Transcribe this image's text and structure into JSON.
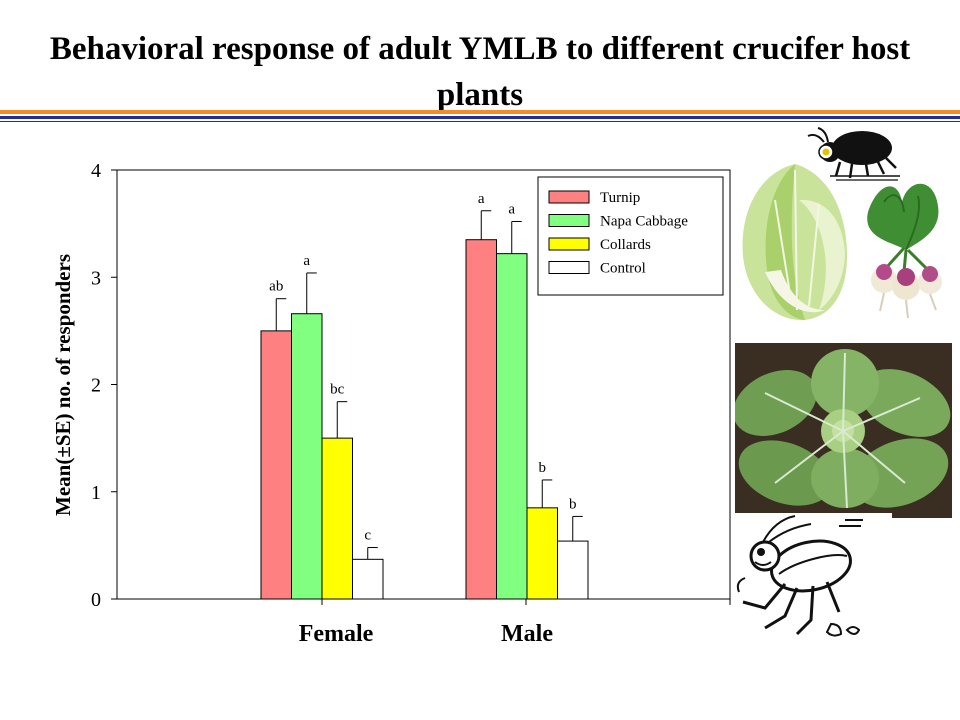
{
  "slide": {
    "title": "Behavioral response of adult YMLB to different crucifer host plants"
  },
  "chart_data": {
    "type": "bar",
    "ylabel": "Mean(±SE) no. of responders",
    "xlabel": "",
    "ylim": [
      0,
      4
    ],
    "yticks": [
      0,
      1,
      2,
      3,
      4
    ],
    "categories": [
      "Female",
      "Male"
    ],
    "legend_position": "top-right",
    "grid": false,
    "series": [
      {
        "name": "Turnip",
        "color": "#ff8080",
        "values": [
          2.5,
          3.35
        ],
        "errors": [
          0.3,
          0.27
        ],
        "letters": [
          "ab",
          "a"
        ]
      },
      {
        "name": "Napa Cabbage",
        "color": "#80ff80",
        "values": [
          2.66,
          3.22
        ],
        "errors": [
          0.38,
          0.3
        ],
        "letters": [
          "a",
          "a"
        ]
      },
      {
        "name": "Collards",
        "color": "#ffff00",
        "values": [
          1.5,
          0.85
        ],
        "errors": [
          0.34,
          0.26
        ],
        "letters": [
          "bc",
          "b"
        ]
      },
      {
        "name": "Control",
        "color": "#ffffff",
        "values": [
          0.37,
          0.54
        ],
        "errors": [
          0.11,
          0.23
        ],
        "letters": [
          "c",
          "b"
        ]
      }
    ]
  },
  "images": [
    {
      "name": "beetle-cartoon-icon"
    },
    {
      "name": "napa-cabbage-photo"
    },
    {
      "name": "turnip-photo"
    },
    {
      "name": "collards-photo"
    },
    {
      "name": "fleeing-beetle-cartoon-icon"
    }
  ]
}
